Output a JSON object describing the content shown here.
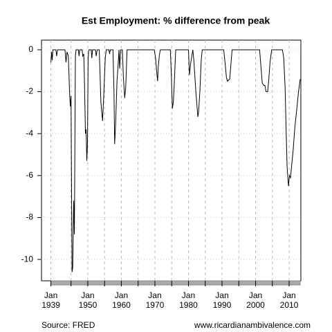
{
  "chart_data": {
    "type": "line",
    "title": "Est Employment: % difference from peak",
    "source": "Source: FRED",
    "credit": "www.ricardianambivalence.com",
    "x": [
      1939.0,
      1939.2,
      1939.4,
      1939.6,
      1940.5,
      1940.7,
      1941,
      1943.2,
      1943.5,
      1943.8,
      1944.2,
      1944.6,
      1944.8,
      1945.0,
      1945.3,
      1945.5,
      1945.8,
      1946.0,
      1946.3,
      1946.5,
      1947.2,
      1947.4,
      1947.6,
      1948.3,
      1948.5,
      1948.8,
      1949.0,
      1949.3,
      1949.5,
      1949.7,
      1949.9,
      1950.1,
      1950.3,
      1951,
      1951.2,
      1951.4,
      1952.3,
      1952.5,
      1952.8,
      1953.4,
      1953.6,
      1953.9,
      1954.4,
      1954.8,
      1955.2,
      1955.5,
      1956.3,
      1956.5,
      1956.7,
      1957.5,
      1957.8,
      1958.0,
      1958.3,
      1958.7,
      1959.0,
      1959.3,
      1959.5,
      1959.8,
      1960.3,
      1960.6,
      1961.0,
      1961.3,
      1961.7,
      1969.8,
      1970.2,
      1970.5,
      1970.8,
      1971.0,
      1971.3,
      1971.6,
      1974.6,
      1974.9,
      1975.2,
      1975.5,
      1975.8,
      1976.2,
      1980.0,
      1980.3,
      1980.7,
      1981.3,
      1981.6,
      1982.2,
      1982.8,
      1983.0,
      1983.4,
      1983.8,
      1984.1,
      1990.5,
      1990.9,
      1991.3,
      1991.6,
      1992.3,
      1992.6,
      1993.0,
      2001.2,
      2001.6,
      2002.0,
      2002.5,
      2002.8,
      2003.1,
      2003.6,
      2003.9,
      2004.3,
      2004.8,
      2008.0,
      2008.4,
      2008.8,
      2009.1,
      2009.4,
      2009.8,
      2010.1,
      2010.4,
      2010.7,
      2011.2,
      2011.7,
      2012.3,
      2012.8,
      2013.3
    ],
    "series": [
      {
        "color": "#000000",
        "values": [
          -0.6,
          -0.1,
          -0.5,
          0,
          0,
          -0.3,
          0,
          0,
          -0.6,
          -0.1,
          -0.3,
          -2.2,
          -2.7,
          -2.2,
          -10.6,
          -10.4,
          -7.2,
          -8.8,
          -0.3,
          0,
          0,
          -0.3,
          0,
          0,
          -0.3,
          -0.2,
          -1.5,
          -4.0,
          -3.8,
          -5.3,
          -4.5,
          -0.4,
          0,
          0,
          -0.4,
          0,
          0,
          -0.3,
          0,
          0,
          -0.9,
          -2.5,
          -3.4,
          -2.0,
          -0.4,
          0,
          0,
          -0.2,
          0,
          0,
          -2.0,
          -4.5,
          -3.5,
          -1.5,
          -0.8,
          0,
          -0.9,
          0,
          0,
          -1.3,
          -2.3,
          -1.8,
          0,
          0,
          -0.4,
          -1.0,
          -1.5,
          -0.8,
          -0.3,
          0,
          0,
          -1.2,
          -2.8,
          -2.5,
          -1.5,
          0,
          0,
          -1.2,
          -0.6,
          0,
          -0.5,
          -2.0,
          -3.2,
          -3.0,
          -2.0,
          -0.5,
          0,
          0,
          -0.6,
          -1.3,
          -1.5,
          -1.4,
          -0.8,
          0,
          0,
          -0.8,
          -1.6,
          -1.7,
          -1.7,
          -2.0,
          -2.0,
          -1.5,
          -0.6,
          0,
          0,
          -0.4,
          -1.8,
          -3.8,
          -5.6,
          -6.5,
          -6.0,
          -6.1,
          -5.6,
          -4.8,
          -3.7,
          -2.8,
          -2.0,
          -1.4
        ]
      }
    ],
    "xlim": [
      1936.2,
      2013.5
    ],
    "xticks": [
      {
        "value": 1939,
        "label": "Jan\n1939"
      },
      {
        "value": 1950,
        "label": "Jan\n1950"
      },
      {
        "value": 1960,
        "label": "Jan\n1960"
      },
      {
        "value": 1970,
        "label": "Jan\n1970"
      },
      {
        "value": 1980,
        "label": "Jan\n1980"
      },
      {
        "value": 1990,
        "label": "Jan\n1990"
      },
      {
        "value": 2000,
        "label": "Jan\n2000"
      },
      {
        "value": 2010,
        "label": "Jan\n2010"
      }
    ],
    "xminorticks": [
      1945,
      1955,
      1965,
      1975,
      1985,
      1995,
      2005
    ],
    "ylim": [
      -11.02,
      0.46
    ],
    "yticks": [
      0,
      -2,
      -4,
      -6,
      -8,
      -10
    ],
    "grid": true
  }
}
